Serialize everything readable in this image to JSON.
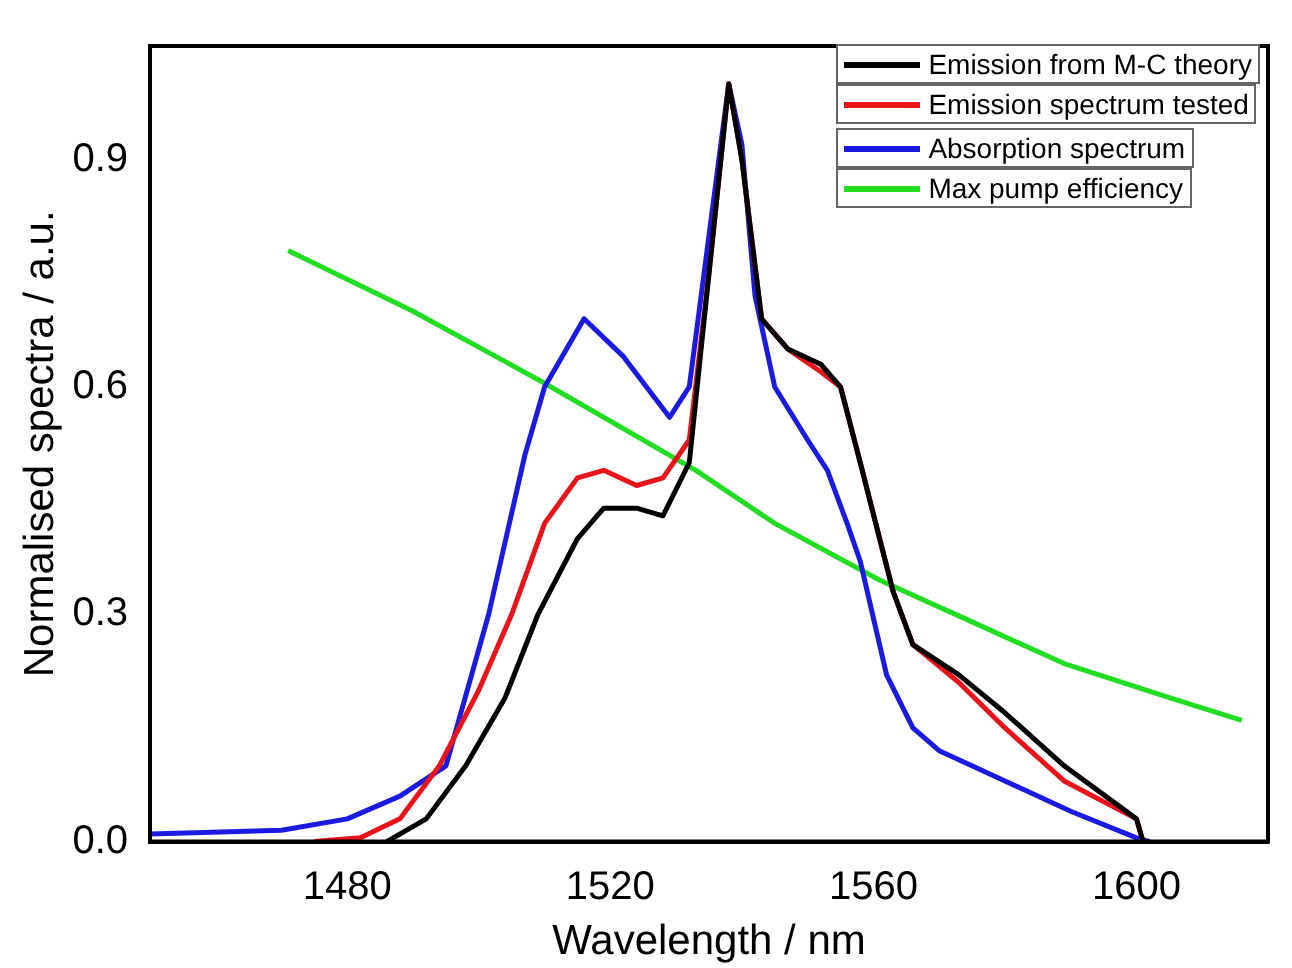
{
  "chart_data": {
    "type": "line",
    "xlabel": "Wavelength / nm",
    "ylabel": "Normalised spectra / a.u.",
    "xlim": [
      1450,
      1620
    ],
    "xticks": [
      1480,
      1520,
      1560,
      1600
    ],
    "ylim": [
      0,
      1.05
    ],
    "yticks": [
      {
        "value": 0,
        "label": "0.0"
      },
      {
        "value": 0.3,
        "label": "0.3"
      },
      {
        "value": 0.6,
        "label": "0.6"
      },
      {
        "value": 0.9,
        "label": "0.9"
      }
    ],
    "legend": "top right",
    "grid": false,
    "series": [
      {
        "name": "Emission from M-C theory",
        "color": "#000000",
        "x": [
          1486,
          1492,
          1498,
          1504,
          1509,
          1515,
          1519,
          1524,
          1528,
          1532,
          1535,
          1538,
          1540,
          1543,
          1547,
          1552,
          1555,
          1558,
          1563,
          1566,
          1573,
          1580,
          1589,
          1600,
          1601
        ],
        "values": [
          0,
          0.03,
          0.1,
          0.19,
          0.3,
          0.4,
          0.44,
          0.44,
          0.43,
          0.5,
          0.75,
          1.0,
          0.9,
          0.69,
          0.65,
          0.63,
          0.6,
          0.5,
          0.33,
          0.26,
          0.22,
          0.17,
          0.1,
          0.03,
          0
        ]
      },
      {
        "name": "Emission spectrum tested",
        "color": "#e8141a",
        "x": [
          1475,
          1482,
          1488,
          1494,
          1500,
          1505,
          1510,
          1515,
          1519,
          1524,
          1528,
          1532,
          1535,
          1538,
          1540,
          1543,
          1547,
          1552,
          1555,
          1558,
          1563,
          1566,
          1573,
          1580,
          1589,
          1600,
          1601
        ],
        "values": [
          0,
          0.005,
          0.03,
          0.1,
          0.2,
          0.3,
          0.42,
          0.48,
          0.49,
          0.47,
          0.48,
          0.53,
          0.75,
          1.0,
          0.9,
          0.69,
          0.65,
          0.62,
          0.6,
          0.5,
          0.33,
          0.26,
          0.21,
          0.15,
          0.08,
          0.03,
          0
        ]
      },
      {
        "name": "Absorption spectrum",
        "color": "#1a1ae0",
        "x": [
          1450,
          1470,
          1480,
          1488,
          1495,
          1501.5,
          1507,
          1510,
          1516,
          1522,
          1529,
          1532,
          1535,
          1538,
          1540,
          1542,
          1545,
          1550,
          1553,
          1556,
          1558,
          1562,
          1566,
          1570,
          1580,
          1590,
          1600,
          1602
        ],
        "values": [
          0.01,
          0.015,
          0.03,
          0.06,
          0.1,
          0.3,
          0.51,
          0.6,
          0.69,
          0.64,
          0.56,
          0.6,
          0.8,
          1.0,
          0.92,
          0.72,
          0.6,
          0.53,
          0.49,
          0.42,
          0.37,
          0.22,
          0.15,
          0.12,
          0.08,
          0.04,
          0.005,
          0
        ]
      },
      {
        "name": "Max pump efficiency",
        "color": "#22dd22",
        "x": [
          1471,
          1490,
          1510,
          1533,
          1545,
          1561,
          1575,
          1589,
          1605,
          1616
        ],
        "values": [
          0.78,
          0.7,
          0.605,
          0.49,
          0.42,
          0.345,
          0.29,
          0.235,
          0.19,
          0.16
        ]
      }
    ]
  }
}
